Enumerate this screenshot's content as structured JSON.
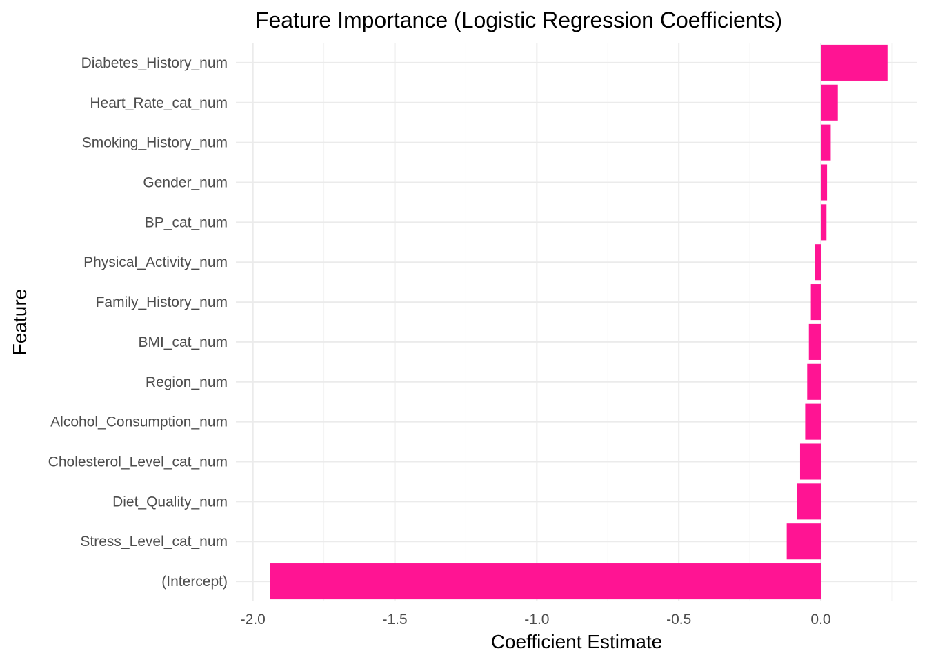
{
  "chart_data": {
    "type": "bar",
    "orientation": "horizontal",
    "title": "Feature Importance (Logistic Regression Coefficients)",
    "xlabel": "Coefficient Estimate",
    "ylabel": "Feature",
    "xlim": [
      -2.06,
      0.34
    ],
    "xticks": [
      -2.0,
      -1.5,
      -1.0,
      -0.5,
      0.0
    ],
    "xtick_labels": [
      "-2.0",
      "-1.5",
      "-1.0",
      "-0.5",
      "0.0"
    ],
    "grid": true,
    "legend": "none",
    "bar_color": "#ff1493",
    "categories": [
      "Diabetes_History_num",
      "Heart_Rate_cat_num",
      "Smoking_History_num",
      "Gender_num",
      "BP_cat_num",
      "Physical_Activity_num",
      "Family_History_num",
      "BMI_cat_num",
      "Region_num",
      "Alcohol_Consumption_num",
      "Cholesterol_Level_cat_num",
      "Diet_Quality_num",
      "Stress_Level_cat_num",
      "(Intercept)"
    ],
    "values": [
      0.235,
      0.06,
      0.035,
      0.022,
      0.02,
      -0.02,
      -0.035,
      -0.042,
      -0.048,
      -0.055,
      -0.073,
      -0.083,
      -0.12,
      -1.94
    ]
  }
}
